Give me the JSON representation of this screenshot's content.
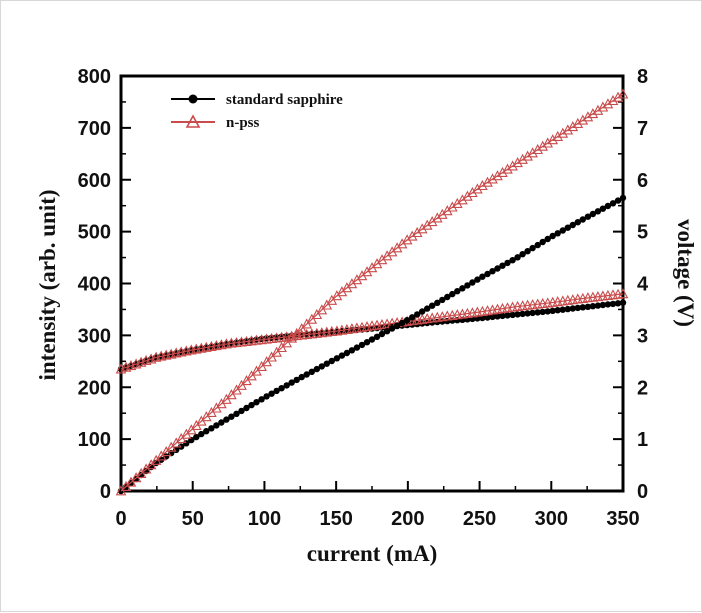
{
  "chart_data": {
    "type": "line",
    "x_label": "current (mA)",
    "y_left_label": "intensity (arb. unit)",
    "y_right_label": "voltage (V)",
    "x_range": [
      0,
      350
    ],
    "y_left_range": [
      0,
      800
    ],
    "y_right_range": [
      0,
      8
    ],
    "x_ticks": [
      "0",
      "50",
      "100",
      "150",
      "200",
      "250",
      "300",
      "350"
    ],
    "y_left_ticks": [
      "0",
      "100",
      "200",
      "300",
      "400",
      "500",
      "600",
      "700",
      "800"
    ],
    "y_right_ticks": [
      "0",
      "1",
      "2",
      "3",
      "4",
      "5",
      "6",
      "7",
      "8"
    ],
    "legend_position": "top-left",
    "legend": [
      "standard sapphire",
      "n-pss"
    ],
    "colors": {
      "standard_sapphire": "#000000",
      "n_pss": "#c94b4b"
    },
    "series": [
      {
        "name": "standard sapphire",
        "type": "intensity",
        "axis": "left",
        "x": [
          0,
          25,
          50,
          75,
          100,
          125,
          150,
          175,
          200,
          225,
          250,
          275,
          300,
          325,
          350
        ],
        "y": [
          0,
          55,
          100,
          140,
          180,
          218,
          255,
          292,
          330,
          370,
          410,
          448,
          490,
          528,
          565
        ]
      },
      {
        "name": "n-pss",
        "type": "intensity",
        "axis": "left",
        "x": [
          0,
          25,
          50,
          75,
          100,
          125,
          150,
          175,
          200,
          225,
          250,
          275,
          300,
          325,
          350
        ],
        "y": [
          0,
          60,
          120,
          180,
          245,
          310,
          375,
          430,
          485,
          535,
          585,
          630,
          675,
          720,
          765
        ]
      },
      {
        "name": "standard sapphire",
        "type": "voltage",
        "axis": "right",
        "x": [
          0,
          25,
          50,
          75,
          100,
          125,
          150,
          175,
          200,
          225,
          250,
          275,
          300,
          325,
          350
        ],
        "y": [
          2.35,
          2.58,
          2.72,
          2.84,
          2.94,
          3.01,
          3.07,
          3.13,
          3.2,
          3.27,
          3.33,
          3.4,
          3.47,
          3.55,
          3.63
        ]
      },
      {
        "name": "n-pss",
        "type": "voltage",
        "axis": "right",
        "x": [
          0,
          25,
          50,
          75,
          100,
          125,
          150,
          175,
          200,
          225,
          250,
          275,
          300,
          325,
          350
        ],
        "y": [
          2.35,
          2.58,
          2.72,
          2.84,
          2.92,
          3.0,
          3.08,
          3.18,
          3.27,
          3.36,
          3.45,
          3.55,
          3.63,
          3.72,
          3.8
        ]
      }
    ]
  }
}
